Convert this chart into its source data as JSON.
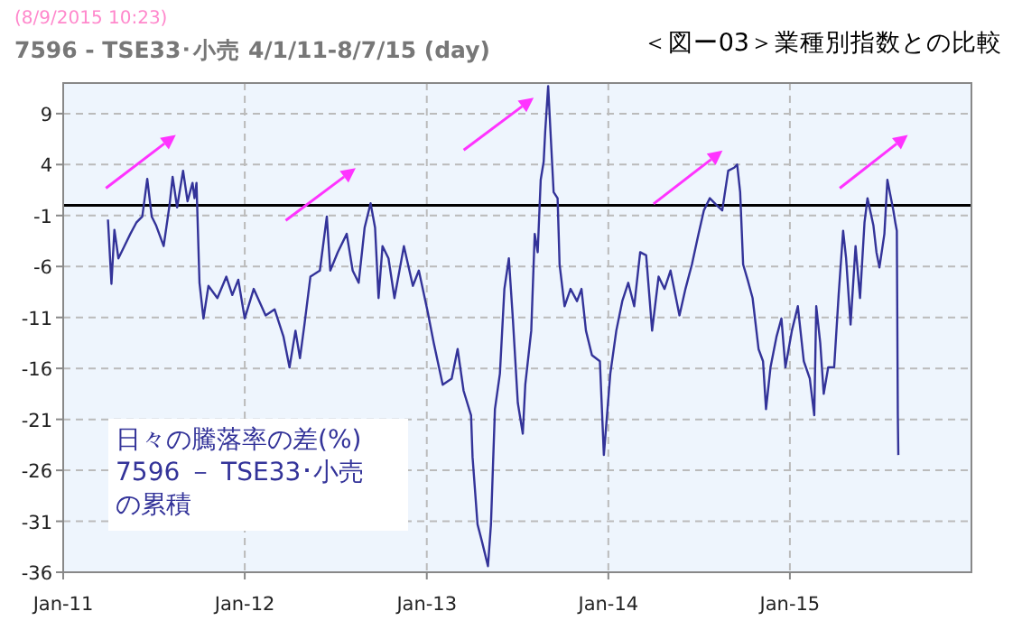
{
  "chart_data": {
    "type": "line",
    "title": "＜図ー03＞業種別指数との比較",
    "subtitle": "7596 - TSE33･小売  4/1/11-8/7/15 (day)",
    "annotations": [
      "(8/9/2015 10:23)",
      "日々の騰落率の差(%)",
      "7596 － TSE33･小売",
      "の累積"
    ],
    "xlim": [
      "2011-01-01",
      "2016-01-01"
    ],
    "ylim": [
      -36,
      12
    ],
    "xticks": [
      {
        "value": "2011-01-01",
        "label": "Jan-11"
      },
      {
        "value": "2012-01-01",
        "label": "Jan-12"
      },
      {
        "value": "2013-01-01",
        "label": "Jan-13"
      },
      {
        "value": "2014-01-01",
        "label": "Jan-14"
      },
      {
        "value": "2015-01-01",
        "label": "Jan-15"
      }
    ],
    "yticks": [
      9,
      4,
      -1,
      -6,
      -11,
      -16,
      -21,
      -26,
      -31,
      -36
    ],
    "grid": true,
    "marker": "none",
    "line_style": "solid",
    "ref_lines": [
      {
        "axis": "y",
        "value": 0,
        "color": "#000000"
      }
    ],
    "series": [
      {
        "color": "#333399",
        "x": [
          "2011-04-01",
          "2011-04-08",
          "2011-04-14",
          "2011-04-22",
          "2011-05-04",
          "2011-05-16",
          "2011-05-28",
          "2011-06-09",
          "2011-06-19",
          "2011-06-28",
          "2011-07-07",
          "2011-07-22",
          "2011-08-03",
          "2011-08-09",
          "2011-08-18",
          "2011-08-30",
          "2011-09-08",
          "2011-09-18",
          "2011-09-22",
          "2011-09-26",
          "2011-10-02",
          "2011-10-10",
          "2011-10-20",
          "2011-11-07",
          "2011-11-25",
          "2011-12-07",
          "2011-12-19",
          "2012-01-01",
          "2012-01-19",
          "2012-02-12",
          "2012-03-01",
          "2012-03-19",
          "2012-03-31",
          "2012-04-12",
          "2012-04-21",
          "2012-04-30",
          "2012-05-12",
          "2012-05-31",
          "2012-06-14",
          "2012-06-21",
          "2012-07-06",
          "2012-07-24",
          "2012-08-05",
          "2012-08-17",
          "2012-08-29",
          "2012-09-10",
          "2012-09-19",
          "2012-09-26",
          "2012-10-04",
          "2012-10-16",
          "2012-10-28",
          "2012-11-16",
          "2012-12-04",
          "2012-12-16",
          "2013-01-03",
          "2013-01-15",
          "2013-02-02",
          "2013-02-20",
          "2013-03-04",
          "2013-03-16",
          "2013-03-31",
          "2013-04-03",
          "2013-04-13",
          "2013-04-22",
          "2013-05-04",
          "2013-05-10",
          "2013-05-18",
          "2013-05-28",
          "2013-06-06",
          "2013-06-15",
          "2013-06-23",
          "2013-07-03",
          "2013-07-13",
          "2013-07-18",
          "2013-07-30",
          "2013-08-06",
          "2013-08-12",
          "2013-08-18",
          "2013-08-24",
          "2013-08-27",
          "2013-09-02",
          "2013-09-08",
          "2013-09-13",
          "2013-09-21",
          "2013-09-25",
          "2013-10-05",
          "2013-10-17",
          "2013-10-30",
          "2013-11-08",
          "2013-11-17",
          "2013-11-29",
          "2013-12-15",
          "2013-12-23",
          "2014-01-05",
          "2014-01-17",
          "2014-01-29",
          "2014-02-10",
          "2014-02-22",
          "2014-03-06",
          "2014-03-18",
          "2014-03-30",
          "2014-04-12",
          "2014-04-24",
          "2014-05-06",
          "2014-05-24",
          "2014-06-05",
          "2014-06-18",
          "2014-06-30",
          "2014-07-12",
          "2014-07-24",
          "2014-08-05",
          "2014-08-18",
          "2014-08-30",
          "2014-09-11",
          "2014-09-17",
          "2014-09-23",
          "2014-09-29",
          "2014-10-08",
          "2014-10-18",
          "2014-10-30",
          "2014-11-08",
          "2014-11-14",
          "2014-11-23",
          "2014-12-05",
          "2014-12-15",
          "2014-12-23",
          "2015-01-05",
          "2015-01-17",
          "2015-01-29",
          "2015-02-10",
          "2015-02-19",
          "2015-02-23",
          "2015-03-03",
          "2015-03-10",
          "2015-03-19",
          "2015-03-31",
          "2015-04-09",
          "2015-04-18",
          "2015-04-24",
          "2015-05-03",
          "2015-05-13",
          "2015-05-22",
          "2015-05-31",
          "2015-06-06",
          "2015-06-18",
          "2015-06-24",
          "2015-06-30",
          "2015-07-10",
          "2015-07-16",
          "2015-07-28",
          "2015-08-01",
          "2015-08-04",
          "2015-08-06",
          "2015-08-07"
        ],
        "values": [
          -1.4,
          -7.7,
          -2.4,
          -5.2,
          -4.0,
          -2.8,
          -1.7,
          -1.1,
          2.6,
          -1.1,
          -2.0,
          -4.0,
          0.1,
          2.8,
          -0.2,
          3.4,
          0.4,
          2.2,
          0.7,
          2.2,
          -7.6,
          -11.1,
          -7.9,
          -9.1,
          -7.0,
          -8.8,
          -7.3,
          -11.1,
          -8.2,
          -10.8,
          -10.2,
          -12.9,
          -15.9,
          -12.3,
          -15.0,
          -11.7,
          -7.0,
          -6.4,
          -1.1,
          -6.4,
          -4.6,
          -2.8,
          -6.4,
          -7.6,
          -2.2,
          0.2,
          -2.2,
          -9.1,
          -4.0,
          -5.2,
          -9.1,
          -4.0,
          -7.9,
          -6.4,
          -10.5,
          -13.5,
          -17.6,
          -17.0,
          -14.1,
          -18.2,
          -20.6,
          -24.7,
          -31.3,
          -33.0,
          -35.4,
          -31.3,
          -20.0,
          -16.5,
          -8.2,
          -5.2,
          -11.1,
          -19.4,
          -22.4,
          -17.6,
          -12.3,
          -2.8,
          -4.6,
          2.5,
          4.3,
          7.2,
          11.7,
          6.0,
          1.3,
          0.7,
          -5.8,
          -9.9,
          -8.2,
          -9.4,
          -8.2,
          -12.3,
          -14.7,
          -15.3,
          -24.5,
          -16.5,
          -12.3,
          -9.4,
          -7.6,
          -9.9,
          -4.6,
          -4.9,
          -12.3,
          -7.0,
          -8.2,
          -6.4,
          -10.8,
          -8.2,
          -5.8,
          -3.1,
          -0.5,
          0.7,
          0.1,
          -0.5,
          3.4,
          3.7,
          4.0,
          1.3,
          -5.8,
          -7.3,
          -9.1,
          -14.1,
          -15.3,
          -20.0,
          -15.9,
          -12.9,
          -11.1,
          -15.9,
          -12.3,
          -9.9,
          -15.3,
          -17.0,
          -20.6,
          -9.9,
          -13.5,
          -18.5,
          -15.9,
          -15.9,
          -8.8,
          -2.5,
          -5.2,
          -11.7,
          -4.0,
          -9.1,
          -1.7,
          0.7,
          -2.0,
          -4.6,
          -6.1,
          -2.8,
          2.5,
          -0.5,
          -1.7,
          -2.5,
          -20.6,
          -24.5
        ]
      }
    ]
  }
}
